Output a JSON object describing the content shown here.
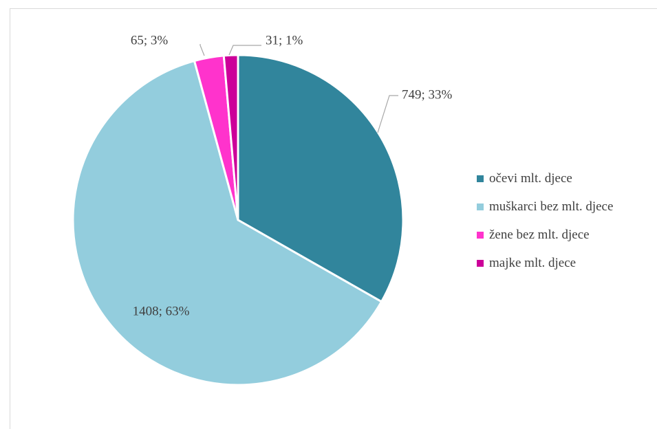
{
  "chart_data": {
    "type": "pie",
    "title": "",
    "legend_position": "right",
    "slices": [
      {
        "label": "očevi mlt. djece",
        "value": 749,
        "percent_label": "33%",
        "display": "749; 33%",
        "color": "#31859C"
      },
      {
        "label": "muškarci bez mlt. djece",
        "value": 1408,
        "percent_label": "63%",
        "display": "1408; 63%",
        "color": "#93CDDD"
      },
      {
        "label": "žene bez mlt. djece",
        "value": 65,
        "percent_label": "3%",
        "display": "65; 3%",
        "color": "#FF33CC"
      },
      {
        "label": "majke mlt. djece",
        "value": 31,
        "percent_label": "1%",
        "display": "31; 1%",
        "color": "#CC0099"
      }
    ]
  }
}
